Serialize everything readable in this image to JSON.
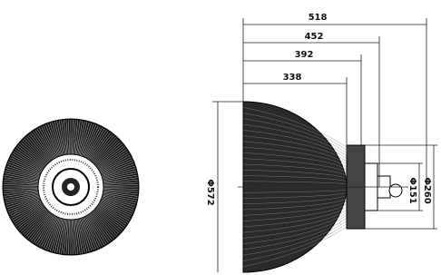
{
  "dimensions": {
    "lengths": [
      "518",
      "452",
      "392",
      "338"
    ],
    "diameters": [
      "Φ572",
      "Φ151",
      "Φ260"
    ]
  }
}
